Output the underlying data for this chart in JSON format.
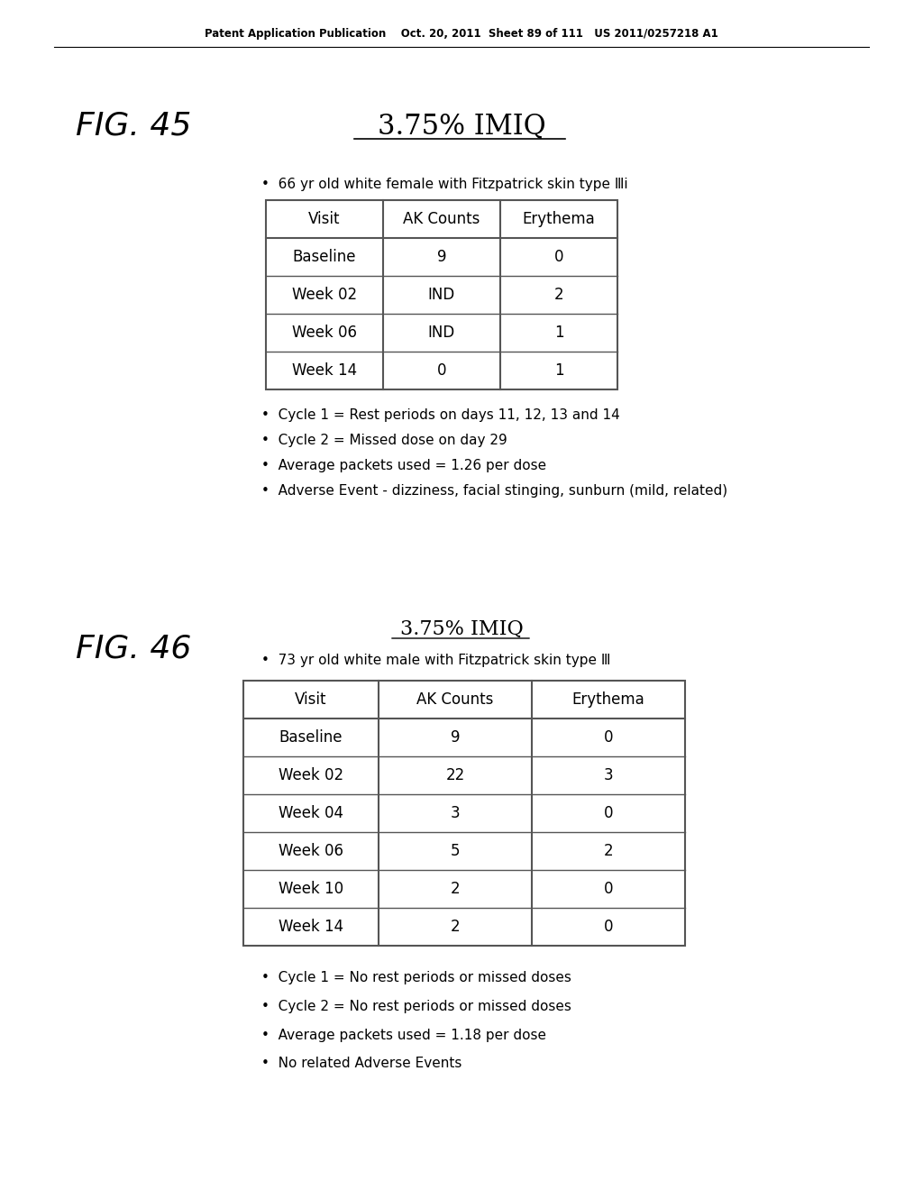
{
  "header_text": "Patent Application Publication    Oct. 20, 2011  Sheet 89 of 111   US 2011/0257218 A1",
  "fig45_label": "FIG. 45",
  "fig45_title": "3.75% IMIQ",
  "fig45_subtitle": "66 yr old white female with Fitzpatrick skin type Ⅲi",
  "fig45_table_headers": [
    "Visit",
    "AK Counts",
    "Erythema"
  ],
  "fig45_table_rows": [
    [
      "Baseline",
      "9",
      "0"
    ],
    [
      "Week 02",
      "IND",
      "2"
    ],
    [
      "Week 06",
      "IND",
      "1"
    ],
    [
      "Week 14",
      "0",
      "1"
    ]
  ],
  "fig45_notes": [
    "Cycle 1 = Rest periods on days 11, 12, 13 and 14",
    "Cycle 2 = Missed dose on day 29",
    "Average packets used = 1.26 per dose",
    "Adverse Event - dizziness, facial stinging, sunburn (mild, related)"
  ],
  "fig46_label": "FIG. 46",
  "fig46_title": "3.75% IMIQ",
  "fig46_subtitle": "73 yr old white male with Fitzpatrick skin type Ⅲ",
  "fig46_table_headers": [
    "Visit",
    "AK Counts",
    "Erythema"
  ],
  "fig46_table_rows": [
    [
      "Baseline",
      "9",
      "0"
    ],
    [
      "Week 02",
      "22",
      "3"
    ],
    [
      "Week 04",
      "3",
      "0"
    ],
    [
      "Week 06",
      "5",
      "2"
    ],
    [
      "Week 10",
      "2",
      "0"
    ],
    [
      "Week 14",
      "2",
      "0"
    ]
  ],
  "fig46_notes": [
    "Cycle 1 = No rest periods or missed doses",
    "Cycle 2 = No rest periods or missed doses",
    "Average packets used = 1.18 per dose",
    "No related Adverse Events"
  ],
  "bg_color": "#ffffff",
  "text_color": "#000000",
  "table_border_color": "#555555",
  "font_size_header": 8.5,
  "font_size_title_main": 22,
  "font_size_title_46": 16,
  "font_size_fig_label": 26,
  "font_size_table": 12,
  "font_size_subtitle": 11,
  "font_size_notes": 11
}
